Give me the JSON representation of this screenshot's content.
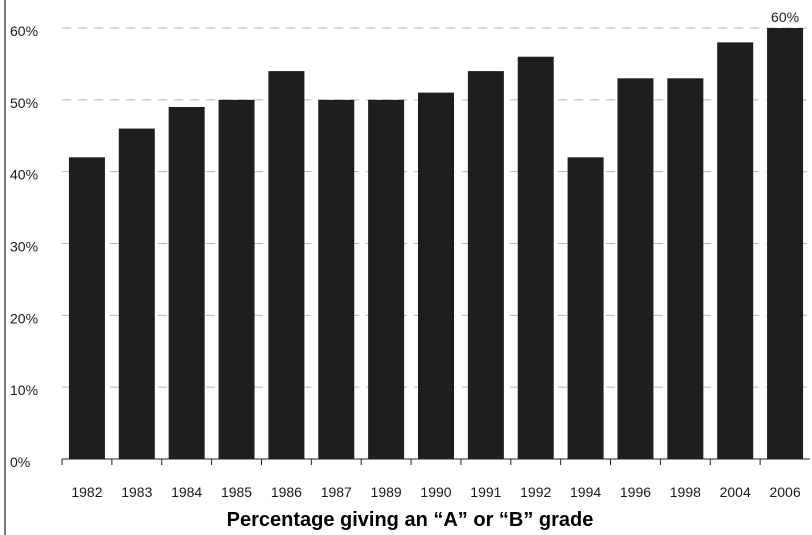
{
  "chart_data": {
    "type": "bar",
    "title": "Percentage giving an “A” or “B” grade",
    "xlabel": "",
    "ylabel": "",
    "categories": [
      "1982",
      "1983",
      "1984",
      "1985",
      "1986",
      "1987",
      "1989",
      "1990",
      "1991",
      "1992",
      "1994",
      "1996",
      "1998",
      "2004",
      "2006"
    ],
    "values": [
      42,
      46,
      49,
      50,
      54,
      50,
      50,
      51,
      54,
      56,
      42,
      53,
      53,
      58,
      60
    ],
    "ylim": [
      0,
      60
    ],
    "y_ticks": [
      0,
      10,
      20,
      30,
      40,
      50,
      60
    ],
    "y_tick_labels": [
      "0%",
      "10%",
      "20%",
      "30%",
      "40%",
      "50%",
      "60%"
    ],
    "data_labels": [
      {
        "category": "2006",
        "text": "60%"
      }
    ],
    "grid": true,
    "bar_color": "#1e1e1e"
  }
}
